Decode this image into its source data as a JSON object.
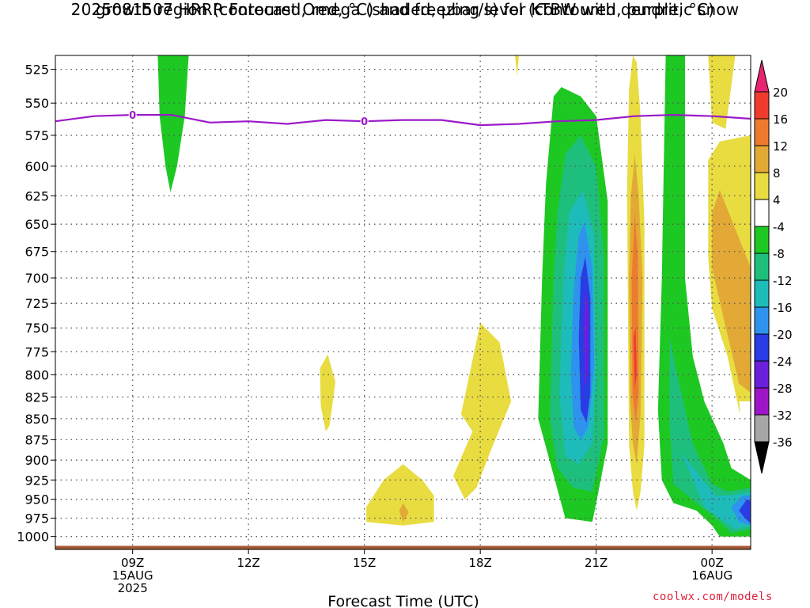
{
  "title_line1": "2025081507 HRRR Forecast Omega (shaded, μbar/s) for KTBW with dendritic snow",
  "title_line2": "growth region (contoured, red, °C) and freezing level (contoured, purple, °C)",
  "credit": "coolwx.com/models",
  "chart_data": {
    "type": "heatmap",
    "xlabel": "Forecast Time (UTC)",
    "ylabel": "",
    "x_ticks": [
      {
        "hour": 9,
        "labels": [
          "09Z",
          "15AUG",
          "2025"
        ]
      },
      {
        "hour": 12,
        "labels": [
          "12Z"
        ]
      },
      {
        "hour": 15,
        "labels": [
          "15Z"
        ]
      },
      {
        "hour": 18,
        "labels": [
          "18Z"
        ]
      },
      {
        "hour": 21,
        "labels": [
          "21Z"
        ]
      },
      {
        "hour": 24,
        "labels": [
          "00Z",
          "16AUG"
        ]
      }
    ],
    "xlim_hours": [
      7,
      25
    ],
    "y_ticks_hpa": [
      525,
      550,
      575,
      600,
      625,
      650,
      675,
      700,
      725,
      750,
      775,
      800,
      825,
      850,
      875,
      900,
      925,
      950,
      975,
      1000
    ],
    "ylim_hpa": [
      515,
      1018
    ],
    "y_scale": "log",
    "grid": true,
    "colorbar": {
      "labels": [
        "20",
        "16",
        "12",
        "8",
        "4",
        "-4",
        "-8",
        "-12",
        "-16",
        "-20",
        "-24",
        "-28",
        "-32",
        "-36"
      ],
      "colors": [
        "#e8236f",
        "#ef3b2e",
        "#ee7a30",
        "#e3a936",
        "#e8dc41",
        "#ffffff",
        "#1ec822",
        "#1ebf7c",
        "#1ebbbb",
        "#2e93ee",
        "#2a3ce3",
        "#6a1fdc",
        "#9e14c8",
        "#a6a6a6",
        "#000000"
      ]
    },
    "freezing_level": {
      "label": "0",
      "color": "#9b19c8",
      "points": [
        [
          7.0,
          564
        ],
        [
          8.0,
          560
        ],
        [
          9.0,
          559
        ],
        [
          10.0,
          559
        ],
        [
          11.0,
          565
        ],
        [
          12.0,
          564
        ],
        [
          13.0,
          566
        ],
        [
          14.0,
          563
        ],
        [
          15.0,
          564
        ],
        [
          16.0,
          563
        ],
        [
          17.0,
          563
        ],
        [
          18.0,
          567
        ],
        [
          19.0,
          566
        ],
        [
          20.0,
          564
        ],
        [
          21.0,
          563
        ],
        [
          22.0,
          560
        ],
        [
          23.0,
          559
        ],
        [
          24.0,
          560
        ],
        [
          25.0,
          562
        ]
      ]
    },
    "omega_regions": [
      {
        "color": "#1ec822",
        "points": [
          [
            9.65,
            515
          ],
          [
            10.45,
            515
          ],
          [
            10.35,
            560
          ],
          [
            10.15,
            600
          ],
          [
            9.98,
            622
          ],
          [
            9.85,
            600
          ],
          [
            9.7,
            560
          ]
        ]
      },
      {
        "color": "#e8dc41",
        "points": [
          [
            13.85,
            793
          ],
          [
            14.05,
            778
          ],
          [
            14.25,
            808
          ],
          [
            14.1,
            858
          ],
          [
            14.0,
            865
          ],
          [
            13.87,
            835
          ]
        ]
      },
      {
        "color": "#e8dc41",
        "points": [
          [
            15.05,
            960
          ],
          [
            15.5,
            925
          ],
          [
            16.0,
            905
          ],
          [
            16.5,
            925
          ],
          [
            16.8,
            945
          ],
          [
            16.8,
            980
          ],
          [
            16.0,
            985
          ],
          [
            15.05,
            980
          ]
        ]
      },
      {
        "color": "#e3a936",
        "points": [
          [
            15.9,
            965
          ],
          [
            16.0,
            955
          ],
          [
            16.15,
            967
          ],
          [
            16.0,
            980
          ]
        ]
      },
      {
        "color": "#e8dc41",
        "points": [
          [
            17.3,
            920
          ],
          [
            17.8,
            865
          ],
          [
            17.5,
            845
          ],
          [
            18.0,
            745
          ],
          [
            18.5,
            765
          ],
          [
            18.8,
            830
          ],
          [
            18.3,
            885
          ],
          [
            17.9,
            935
          ],
          [
            17.6,
            950
          ]
        ]
      },
      {
        "color": "#e8dc41",
        "points": [
          [
            18.9,
            515
          ],
          [
            19.0,
            515
          ],
          [
            18.95,
            530
          ]
        ]
      },
      {
        "color": "#1ec822",
        "points": [
          [
            19.5,
            850
          ],
          [
            19.6,
            700
          ],
          [
            19.7,
            615
          ],
          [
            19.9,
            545
          ],
          [
            20.1,
            538
          ],
          [
            20.6,
            545
          ],
          [
            21.0,
            560
          ],
          [
            21.3,
            630
          ],
          [
            21.3,
            880
          ],
          [
            21.0,
            955
          ],
          [
            20.9,
            980
          ],
          [
            20.2,
            975
          ]
        ]
      },
      {
        "color": "#1ebf7c",
        "points": [
          [
            19.8,
            850
          ],
          [
            19.9,
            700
          ],
          [
            20.0,
            640
          ],
          [
            20.2,
            590
          ],
          [
            20.6,
            575
          ],
          [
            21.0,
            600
          ],
          [
            21.2,
            680
          ],
          [
            21.2,
            870
          ],
          [
            20.9,
            940
          ],
          [
            20.4,
            935
          ],
          [
            20.0,
            910
          ]
        ]
      },
      {
        "color": "#1ebbbb",
        "points": [
          [
            20.05,
            820
          ],
          [
            20.15,
            700
          ],
          [
            20.3,
            640
          ],
          [
            20.65,
            620
          ],
          [
            20.95,
            660
          ],
          [
            21.0,
            800
          ],
          [
            20.9,
            880
          ],
          [
            20.55,
            905
          ],
          [
            20.2,
            895
          ]
        ]
      },
      {
        "color": "#2e93ee",
        "points": [
          [
            20.35,
            800
          ],
          [
            20.4,
            720
          ],
          [
            20.55,
            660
          ],
          [
            20.7,
            648
          ],
          [
            20.9,
            690
          ],
          [
            20.95,
            790
          ],
          [
            20.8,
            860
          ],
          [
            20.6,
            875
          ],
          [
            20.42,
            860
          ]
        ]
      },
      {
        "color": "#2a3ce3",
        "points": [
          [
            20.55,
            760
          ],
          [
            20.6,
            700
          ],
          [
            20.72,
            680
          ],
          [
            20.85,
            720
          ],
          [
            20.85,
            820
          ],
          [
            20.75,
            855
          ],
          [
            20.6,
            840
          ]
        ]
      },
      {
        "color": "#6a1fdc",
        "points": [
          [
            20.68,
            750
          ],
          [
            20.72,
            710
          ],
          [
            20.8,
            730
          ],
          [
            20.78,
            800
          ],
          [
            20.72,
            815
          ]
        ]
      },
      {
        "color": "#e8dc41",
        "points": [
          [
            21.8,
            620
          ],
          [
            21.85,
            540
          ],
          [
            21.95,
            515
          ],
          [
            22.05,
            520
          ],
          [
            22.15,
            560
          ],
          [
            22.25,
            650
          ],
          [
            22.25,
            880
          ],
          [
            22.15,
            940
          ],
          [
            22.05,
            965
          ],
          [
            21.95,
            940
          ],
          [
            21.85,
            880
          ]
        ]
      },
      {
        "color": "#e3a936",
        "points": [
          [
            21.85,
            700
          ],
          [
            21.9,
            625
          ],
          [
            22.0,
            590
          ],
          [
            22.1,
            625
          ],
          [
            22.2,
            700
          ],
          [
            22.15,
            845
          ],
          [
            22.05,
            905
          ],
          [
            21.95,
            880
          ],
          [
            21.88,
            830
          ]
        ]
      },
      {
        "color": "#ee7a30",
        "points": [
          [
            21.92,
            700
          ],
          [
            22.0,
            640
          ],
          [
            22.08,
            680
          ],
          [
            22.1,
            820
          ],
          [
            22.02,
            855
          ],
          [
            21.94,
            820
          ]
        ]
      },
      {
        "color": "#ef3b2e",
        "points": [
          [
            21.97,
            760
          ],
          [
            22.02,
            750
          ],
          [
            22.05,
            800
          ],
          [
            22.0,
            815
          ]
        ]
      },
      {
        "color": "#1ec822",
        "points": [
          [
            22.8,
            515
          ],
          [
            23.3,
            515
          ],
          [
            23.3,
            565
          ],
          [
            23.3,
            700
          ],
          [
            23.5,
            780
          ],
          [
            23.8,
            830
          ],
          [
            24.3,
            880
          ],
          [
            24.5,
            910
          ],
          [
            25.0,
            925
          ],
          [
            25.0,
            1000
          ],
          [
            24.2,
            1000
          ],
          [
            24.0,
            985
          ],
          [
            23.6,
            965
          ],
          [
            23.0,
            955
          ],
          [
            22.7,
            925
          ],
          [
            22.6,
            840
          ],
          [
            22.7,
            700
          ],
          [
            22.75,
            600
          ]
        ]
      },
      {
        "color": "#1ebf7c",
        "points": [
          [
            22.9,
            855
          ],
          [
            22.9,
            760
          ],
          [
            23.1,
            800
          ],
          [
            23.5,
            880
          ],
          [
            24.0,
            930
          ],
          [
            24.4,
            940
          ],
          [
            25.0,
            935
          ],
          [
            25.0,
            990
          ],
          [
            24.5,
            995
          ],
          [
            24.1,
            975
          ],
          [
            23.6,
            955
          ],
          [
            23.0,
            930
          ]
        ]
      },
      {
        "color": "#1ebbbb",
        "points": [
          [
            23.2,
            890
          ],
          [
            23.6,
            915
          ],
          [
            24.1,
            945
          ],
          [
            24.5,
            945
          ],
          [
            25.0,
            940
          ],
          [
            25.0,
            985
          ],
          [
            24.6,
            990
          ],
          [
            24.2,
            975
          ],
          [
            23.8,
            960
          ]
        ]
      },
      {
        "color": "#2e93ee",
        "points": [
          [
            24.5,
            960
          ],
          [
            24.8,
            945
          ],
          [
            25.0,
            945
          ],
          [
            25.0,
            985
          ],
          [
            24.7,
            980
          ]
        ]
      },
      {
        "color": "#2a3ce3",
        "points": [
          [
            24.7,
            965
          ],
          [
            24.9,
            950
          ],
          [
            25.0,
            952
          ],
          [
            25.0,
            982
          ],
          [
            24.85,
            975
          ]
        ]
      },
      {
        "color": "#e8dc41",
        "points": [
          [
            23.9,
            515
          ],
          [
            24.6,
            515
          ],
          [
            24.35,
            570
          ],
          [
            24.0,
            565
          ]
        ]
      },
      {
        "color": "#e8dc41",
        "points": [
          [
            23.9,
            680
          ],
          [
            23.9,
            595
          ],
          [
            24.2,
            580
          ],
          [
            25.0,
            575
          ],
          [
            25.0,
            870
          ],
          [
            24.7,
            840
          ],
          [
            24.4,
            780
          ],
          [
            24.0,
            730
          ]
        ]
      },
      {
        "color": "#e3a936",
        "points": [
          [
            24.0,
            690
          ],
          [
            24.0,
            640
          ],
          [
            24.2,
            620
          ],
          [
            25.0,
            690
          ],
          [
            25.0,
            820
          ],
          [
            24.7,
            810
          ],
          [
            24.3,
            740
          ]
        ]
      },
      {
        "color": "#ffffff",
        "points": [
          [
            24.7,
            830
          ],
          [
            25.0,
            830
          ],
          [
            25.0,
            900
          ],
          [
            24.9,
            892
          ],
          [
            24.8,
            870
          ]
        ]
      }
    ],
    "ground": {
      "color": "#a55a35",
      "hpa": 1013
    }
  }
}
